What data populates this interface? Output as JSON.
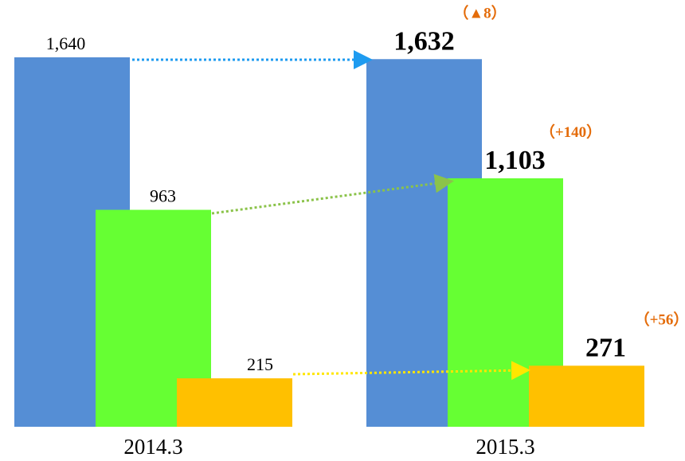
{
  "chart_data": {
    "type": "bar",
    "categories": [
      "2014.3",
      "2015.3"
    ],
    "series": [
      {
        "color": "#558ED5",
        "values": [
          1640,
          1632
        ],
        "value_labels": [
          "1,640",
          "1,632"
        ]
      },
      {
        "color": "#66FF33",
        "values": [
          963,
          1103
        ],
        "value_labels": [
          "963",
          "1,103"
        ]
      },
      {
        "color": "#FFC000",
        "values": [
          215,
          271
        ],
        "value_labels": [
          "215",
          "271"
        ]
      }
    ],
    "annotations": [
      "（▲8）",
      "（+140）",
      "（+56）"
    ]
  }
}
